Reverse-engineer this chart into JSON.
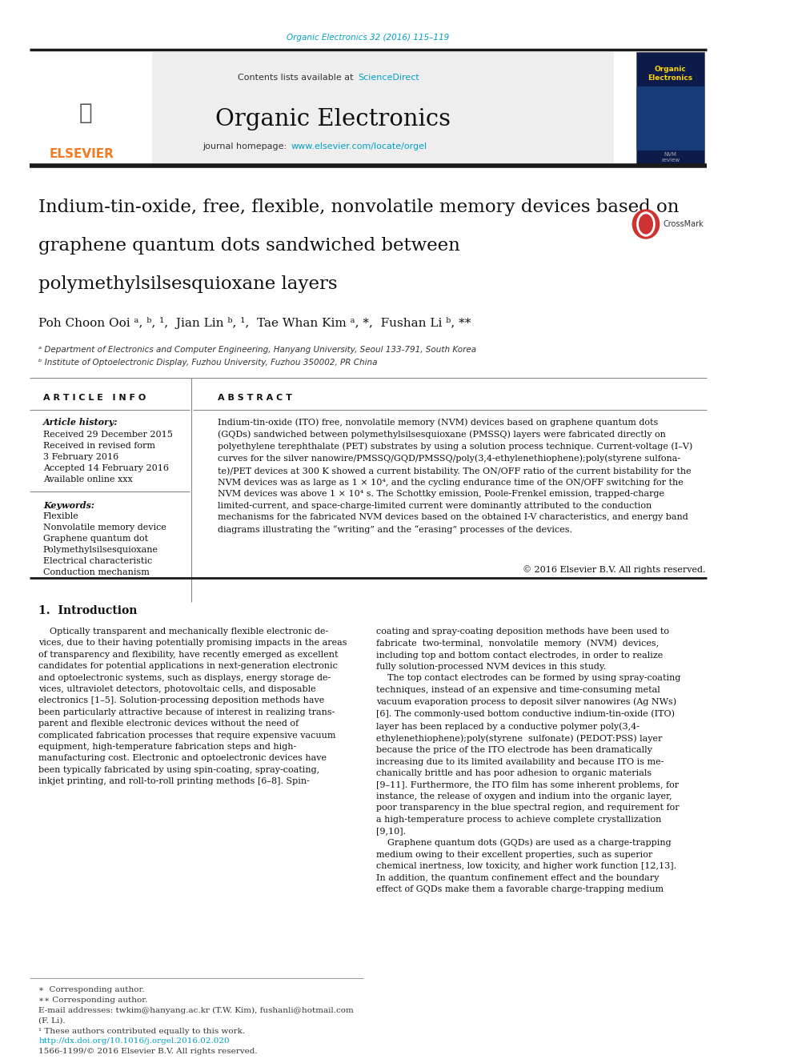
{
  "page_width": 9.92,
  "page_height": 13.23,
  "background_color": "#ffffff",
  "top_journal_ref": "Organic Electronics 32 (2016) 115–119",
  "top_journal_ref_color": "#00a0c6",
  "header_bg_color": "#eeeeee",
  "thick_border_color": "#1a1a1a",
  "thin_line_color": "#888888",
  "sciencedirect_color": "#00a0c6",
  "homepage_url_color": "#00a0c6",
  "elsevier_color": "#f47920",
  "doi_color": "#00a0c6",
  "journal_name": "Organic Electronics",
  "homepage_url": "www.elsevier.com/locate/orgel",
  "affil_a": "ᵃ Department of Electronics and Computer Engineering, Hanyang University, Seoul 133-791, South Korea",
  "affil_b": "ᵇ Institute of Optoelectronic Display, Fuzhou University, Fuzhou 350002, PR China",
  "history_lines": [
    "Received 29 December 2015",
    "Received in revised form",
    "3 February 2016",
    "Accepted 14 February 2016",
    "Available online xxx"
  ],
  "keywords": [
    "Flexible",
    "Nonvolatile memory device",
    "Graphene quantum dot",
    "Polymethylsilsesquioxane",
    "Electrical characteristic",
    "Conduction mechanism"
  ],
  "doi_text": "http://dx.doi.org/10.1016/j.orgel.2016.02.020",
  "issn_text": "1566-1199/© 2016 Elsevier B.V. All rights reserved."
}
